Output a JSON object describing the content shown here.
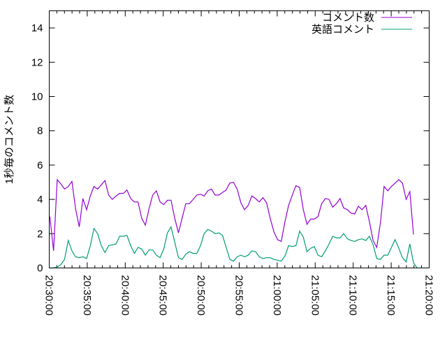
{
  "chart_data": {
    "type": "line",
    "title": "",
    "xlabel": "",
    "ylabel": "1秒毎のコメント数",
    "ylim": [
      0,
      15
    ],
    "yticks": [
      "0",
      "2",
      "4",
      "6",
      "8",
      "10",
      "12",
      "14"
    ],
    "xlim": [
      "20:30:00",
      "21:20:00"
    ],
    "xticks": [
      "20:30:00",
      "20:35:00",
      "20:40:00",
      "20:45:00",
      "20:50:00",
      "20:55:00",
      "21:00:00",
      "21:05:00",
      "21:10:00",
      "21:15:00",
      "21:20:00"
    ],
    "x_start": "20:30:05",
    "x_step_seconds": 29,
    "grid": false,
    "legend_position": "top-right",
    "series": [
      {
        "name": "コメント数",
        "color": "#9400d3",
        "values": [
          3.0,
          1.0,
          5.15,
          4.9,
          4.6,
          4.75,
          5.05,
          3.45,
          2.4,
          4.05,
          3.4,
          4.2,
          4.75,
          4.6,
          4.85,
          5.1,
          4.25,
          4.0,
          4.2,
          4.35,
          4.35,
          4.55,
          4.05,
          3.85,
          3.85,
          2.9,
          2.5,
          3.45,
          4.25,
          4.5,
          3.85,
          3.7,
          3.95,
          3.95,
          2.9,
          2.05,
          2.9,
          3.75,
          3.75,
          4.0,
          4.25,
          4.3,
          4.2,
          4.5,
          4.6,
          4.25,
          4.25,
          4.4,
          4.55,
          4.95,
          5.0,
          4.6,
          3.8,
          3.4,
          3.65,
          4.2,
          4.05,
          3.85,
          4.1,
          3.8,
          2.9,
          2.1,
          1.65,
          1.55,
          2.7,
          3.65,
          4.25,
          4.8,
          4.7,
          3.4,
          2.55,
          2.85,
          2.85,
          3.0,
          3.75,
          4.05,
          4.0,
          3.55,
          3.75,
          4.05,
          3.5,
          3.4,
          3.2,
          3.15,
          3.6,
          3.4,
          3.65,
          2.7,
          1.6,
          1.2,
          2.65,
          4.75,
          4.5,
          4.75,
          4.95,
          5.15,
          4.95,
          4.0,
          4.45,
          1.95
        ]
      },
      {
        "name": "英語コメント",
        "color": "#009e73",
        "values": [
          0,
          0,
          0.05,
          0.2,
          0.5,
          1.6,
          1.0,
          0.65,
          0.6,
          0.65,
          0.55,
          1.3,
          2.3,
          2.0,
          1.3,
          0.9,
          1.3,
          1.35,
          1.4,
          1.85,
          1.85,
          1.9,
          1.3,
          0.85,
          1.2,
          1.1,
          0.75,
          1.05,
          1.05,
          0.75,
          0.6,
          1.1,
          2.05,
          2.4,
          1.5,
          0.6,
          0.5,
          0.8,
          0.95,
          0.85,
          0.85,
          1.3,
          2.0,
          2.25,
          2.15,
          2.0,
          2.05,
          1.9,
          1.2,
          0.5,
          0.4,
          0.65,
          0.75,
          0.65,
          0.75,
          1.0,
          0.95,
          0.65,
          0.55,
          0.6,
          0.6,
          0.5,
          0.45,
          0.4,
          0.7,
          1.3,
          1.25,
          1.3,
          2.15,
          1.8,
          0.95,
          1.15,
          1.25,
          0.75,
          0.65,
          1.0,
          1.4,
          1.85,
          1.75,
          1.75,
          2.0,
          1.7,
          1.6,
          1.55,
          1.65,
          1.7,
          1.6,
          1.85,
          1.35,
          0.55,
          0.5,
          0.75,
          0.75,
          1.2,
          1.65,
          1.15,
          0.6,
          0.35,
          1.4,
          0.3,
          0
        ]
      }
    ]
  }
}
